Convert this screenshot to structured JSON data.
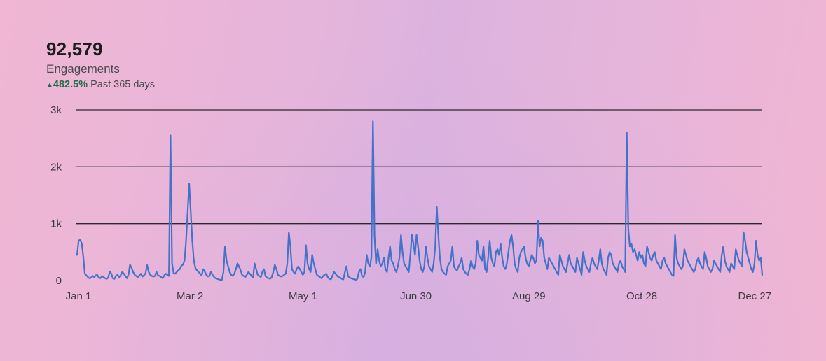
{
  "summary": {
    "total": "92,579",
    "metric": "Engagements",
    "change_arrow": "▲",
    "change": "482.5%",
    "period": "Past 365 days"
  },
  "colors": {
    "line": "#4472c8",
    "gridline": "#2a2a2e",
    "positive": "#1f6e4c"
  },
  "chart_data": {
    "type": "line",
    "title": "",
    "xlabel": "",
    "ylabel": "",
    "ylim": [
      0,
      3000
    ],
    "y_ticks": [
      0,
      1000,
      2000,
      3000
    ],
    "y_tick_labels": [
      "0",
      "1k",
      "2k",
      "3k"
    ],
    "x_tick_labels": [
      "Jan 1",
      "Mar 2",
      "May 1",
      "Jun 30",
      "Aug 29",
      "Oct 28",
      "Dec 27"
    ],
    "x_tick_days": [
      0,
      60,
      120,
      180,
      240,
      300,
      360
    ],
    "grid": true,
    "x": "day 0 = Jan 1, one point per day",
    "series": [
      {
        "values": [
          450,
          700,
          720,
          650,
          420,
          120,
          90,
          60,
          40,
          50,
          80,
          60,
          90,
          100,
          50,
          40,
          80,
          60,
          40,
          30,
          50,
          160,
          120,
          40,
          30,
          80,
          100,
          60,
          90,
          150,
          120,
          80,
          40,
          100,
          280,
          220,
          150,
          100,
          80,
          60,
          90,
          120,
          70,
          90,
          130,
          270,
          150,
          100,
          80,
          70,
          80,
          150,
          90,
          80,
          60,
          40,
          90,
          120,
          100,
          80,
          2550,
          300,
          130,
          120,
          150,
          180,
          200,
          260,
          280,
          350,
          700,
          1200,
          1700,
          1200,
          700,
          350,
          220,
          180,
          150,
          120,
          90,
          200,
          160,
          100,
          70,
          80,
          150,
          100,
          60,
          40,
          30,
          20,
          10,
          10,
          150,
          600,
          350,
          250,
          150,
          100,
          80,
          120,
          200,
          300,
          250,
          180,
          100,
          80,
          60,
          100,
          150,
          120,
          80,
          50,
          300,
          200,
          100,
          80,
          60,
          150,
          200,
          80,
          50,
          40,
          30,
          60,
          150,
          280,
          200,
          100,
          80,
          70,
          80,
          100,
          120,
          300,
          850,
          600,
          200,
          150,
          120,
          200,
          250,
          200,
          150,
          100,
          150,
          620,
          300,
          200,
          150,
          450,
          300,
          200,
          100,
          80,
          60,
          40,
          80,
          100,
          120,
          60,
          30,
          20,
          80,
          150,
          120,
          80,
          60,
          50,
          30,
          20,
          150,
          250,
          80,
          50,
          40,
          30,
          20,
          10,
          30,
          150,
          200,
          80,
          60,
          150,
          450,
          300,
          250,
          400,
          2800,
          800,
          300,
          550,
          350,
          250,
          300,
          400,
          200,
          150,
          400,
          600,
          350,
          300,
          200,
          150,
          250,
          400,
          800,
          500,
          300,
          250,
          200,
          150,
          450,
          800,
          650,
          450,
          800,
          600,
          350,
          200,
          150,
          250,
          600,
          400,
          250,
          200,
          150,
          300,
          600,
          1300,
          800,
          400,
          200,
          150,
          120,
          100,
          250,
          300,
          350,
          600,
          250,
          200,
          180,
          250,
          300,
          400,
          200,
          150,
          120,
          100,
          200,
          350,
          250,
          200,
          300,
          700,
          450,
          400,
          350,
          600,
          200,
          150,
          400,
          700,
          400,
          300,
          250,
          500,
          550,
          450,
          650,
          400,
          250,
          200,
          300,
          500,
          700,
          800,
          600,
          300,
          200,
          150,
          400,
          500,
          550,
          600,
          400,
          300,
          250,
          350,
          450,
          400,
          300,
          350,
          1050,
          600,
          750,
          700,
          400,
          300,
          200,
          400,
          350,
          300,
          250,
          200,
          150,
          100,
          450,
          350,
          250,
          200,
          150,
          300,
          450,
          300,
          250,
          200,
          150,
          400,
          300,
          200,
          100,
          500,
          350,
          250,
          200,
          150,
          300,
          400,
          300,
          250,
          200,
          350,
          550,
          300,
          200,
          150,
          100,
          400,
          500,
          450,
          300,
          250,
          200,
          150,
          300,
          350,
          250,
          200,
          150,
          2600,
          900,
          600,
          650,
          500,
          550,
          450,
          350,
          500,
          400,
          450,
          300,
          250,
          600,
          500,
          400,
          350,
          450,
          500,
          350,
          300,
          250,
          200,
          350,
          400,
          300,
          250,
          200,
          150,
          100,
          80,
          800,
          400,
          300,
          250,
          200,
          250,
          550,
          450,
          350,
          300,
          250,
          200,
          150,
          200,
          350,
          400,
          300,
          250,
          200,
          500,
          400,
          250,
          200,
          150,
          200,
          350,
          300,
          250,
          200,
          150,
          450,
          600,
          350,
          250,
          200,
          150,
          300,
          250,
          200,
          550,
          450,
          350,
          300,
          250,
          850,
          700,
          500,
          400,
          300,
          200,
          150,
          300,
          700,
          450,
          350,
          400,
          100
        ]
      }
    ]
  }
}
